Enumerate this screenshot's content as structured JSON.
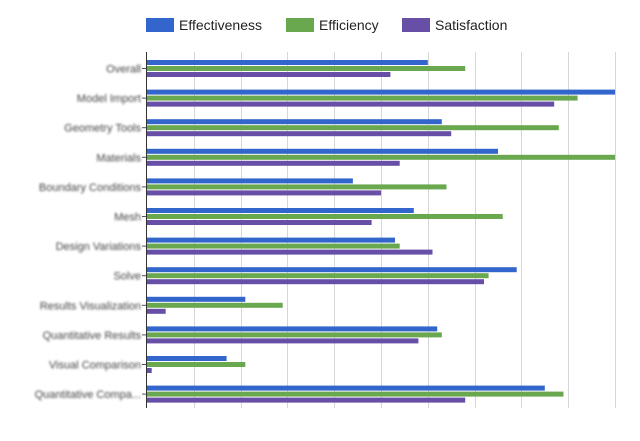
{
  "chart_data": {
    "type": "bar",
    "orientation": "horizontal",
    "title": "",
    "xlabel": "",
    "ylabel": "",
    "xlim": [
      0,
      100
    ],
    "grid": true,
    "legend_position": "top",
    "categories": [
      "Overall",
      "Model Import",
      "Geometry Tools",
      "Materials",
      "Boundary Conditions",
      "Mesh",
      "Design Variations",
      "Solve",
      "Results Visualization",
      "Quantitative Results",
      "Visual Comparison",
      "Quantitative Compa..."
    ],
    "series": [
      {
        "name": "Effectiveness",
        "color": "#3366cc",
        "values": [
          60,
          100,
          63,
          75,
          44,
          57,
          53,
          79,
          21,
          62,
          17,
          85
        ]
      },
      {
        "name": "Efficiency",
        "color": "#6aa84f",
        "values": [
          68,
          92,
          88,
          100,
          64,
          76,
          54,
          73,
          29,
          63,
          21,
          89
        ]
      },
      {
        "name": "Satisfaction",
        "color": "#674ea7",
        "values": [
          52,
          87,
          65,
          54,
          50,
          48,
          61,
          72,
          4,
          58,
          1,
          68
        ]
      }
    ]
  }
}
